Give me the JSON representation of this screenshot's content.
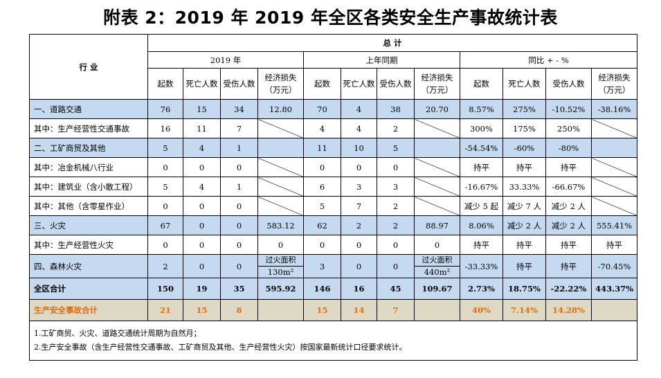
{
  "title": "附表 2：2019 年 2019 年全区各类安全生产事故统计表",
  "header": {
    "industry": "行 业",
    "total": "总 计",
    "groups": [
      "2019 年",
      "上年同期",
      "同比 + - %"
    ],
    "cols": [
      "起数",
      "死亡人数",
      "受伤人数",
      "经济损失（万元）"
    ]
  },
  "rows": [
    {
      "name": "一、道路交通",
      "cells": [
        "76",
        "15",
        "34",
        "12.80",
        "70",
        "4",
        "38",
        "20.70",
        "8.57%",
        "275%",
        "-10.52%",
        "-38.16%"
      ]
    },
    {
      "name": "其中：生产经营性交通事故",
      "cells": [
        "16",
        "11",
        "7",
        "",
        "4",
        "4",
        "2",
        "",
        "300%",
        "175%",
        "250%",
        ""
      ]
    },
    {
      "name": "二、工矿商贸及其他",
      "cells": [
        "5",
        "4",
        "1",
        "",
        "11",
        "10",
        "5",
        "",
        "-54.54%",
        "-60%",
        "-80%",
        ""
      ]
    },
    {
      "name": "其中：冶金机械八行业",
      "cells": [
        "0",
        "0",
        "0",
        "",
        "0",
        "0",
        "0",
        "",
        "持平",
        "持平",
        "持平",
        ""
      ]
    },
    {
      "name": "其中：建筑业（含小散工程）",
      "cells": [
        "5",
        "4",
        "1",
        "",
        "6",
        "3",
        "3",
        "",
        "-16.67%",
        "33.33%",
        "-66.67%",
        ""
      ]
    },
    {
      "name": "其中：其他（含零星作业）",
      "cells": [
        "0",
        "0",
        "0",
        "",
        "5",
        "7",
        "2",
        "",
        "减少 5 起",
        "减少 7 人",
        "减少 2 人",
        ""
      ]
    },
    {
      "name": "三、火灾",
      "cells": [
        "67",
        "0",
        "0",
        "583.12",
        "62",
        "2",
        "2",
        "88.97",
        "8.06%",
        "减少 2 人",
        "减少 2 人",
        "555.41%"
      ]
    },
    {
      "name": "其中：生产经营性火灾",
      "cells": [
        "0",
        "0",
        "0",
        "0",
        "0",
        "0",
        "0",
        "0",
        "持平",
        "持平",
        "持平",
        "持平"
      ]
    },
    {
      "name": "四、森林火灾",
      "cells": [
        "2",
        "0",
        "0",
        "",
        "3",
        "0",
        "0",
        "",
        "-33.33%",
        "持平",
        "持平",
        "-70.45%"
      ],
      "forest": {
        "label": "过火面积",
        "v2019": "130m²",
        "vlast": "440m²"
      }
    },
    {
      "name": "全区合计",
      "cells": [
        "150",
        "19",
        "35",
        "595.92",
        "146",
        "16",
        "45",
        "109.67",
        "2.73%",
        "18.75%",
        "-22.22%",
        "443.37%"
      ]
    },
    {
      "name": "生产安全事故合计",
      "cells": [
        "21",
        "15",
        "8",
        "",
        "15",
        "14",
        "7",
        "",
        "40%",
        "7.14%",
        "14.28%",
        ""
      ]
    }
  ],
  "notes": [
    "1.工矿商贸、火灾、道路交通统计周期为自然月；",
    "2.生产安全事故（含生产经营性交通事故、工矿商贸及其他、生产经营性火灾）按国家最新统计口径要求统计。"
  ],
  "colors": {
    "highlight": "#c5d9f1",
    "summary": "#ddd9c4",
    "summary_text": "#e36c09"
  }
}
